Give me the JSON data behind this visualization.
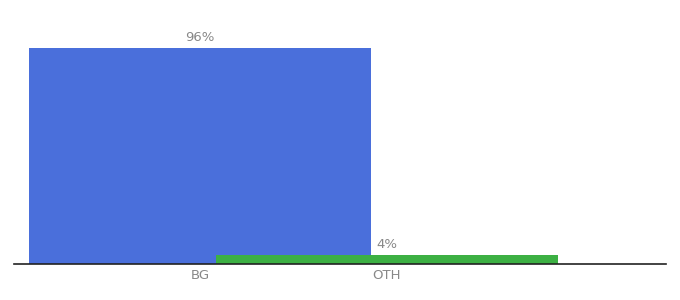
{
  "categories": [
    "BG",
    "OTH"
  ],
  "values": [
    96,
    4
  ],
  "bar_colors": [
    "#4a6fdb",
    "#3cb043"
  ],
  "value_labels": [
    "96%",
    "4%"
  ],
  "background_color": "#ffffff",
  "ylim": [
    0,
    108
  ],
  "bar_width": 0.55,
  "label_fontsize": 9.5,
  "tick_fontsize": 9.5,
  "label_color": "#888888",
  "tick_color": "#888888",
  "spine_color": "#222222",
  "x_positions": [
    0.25,
    0.55
  ]
}
